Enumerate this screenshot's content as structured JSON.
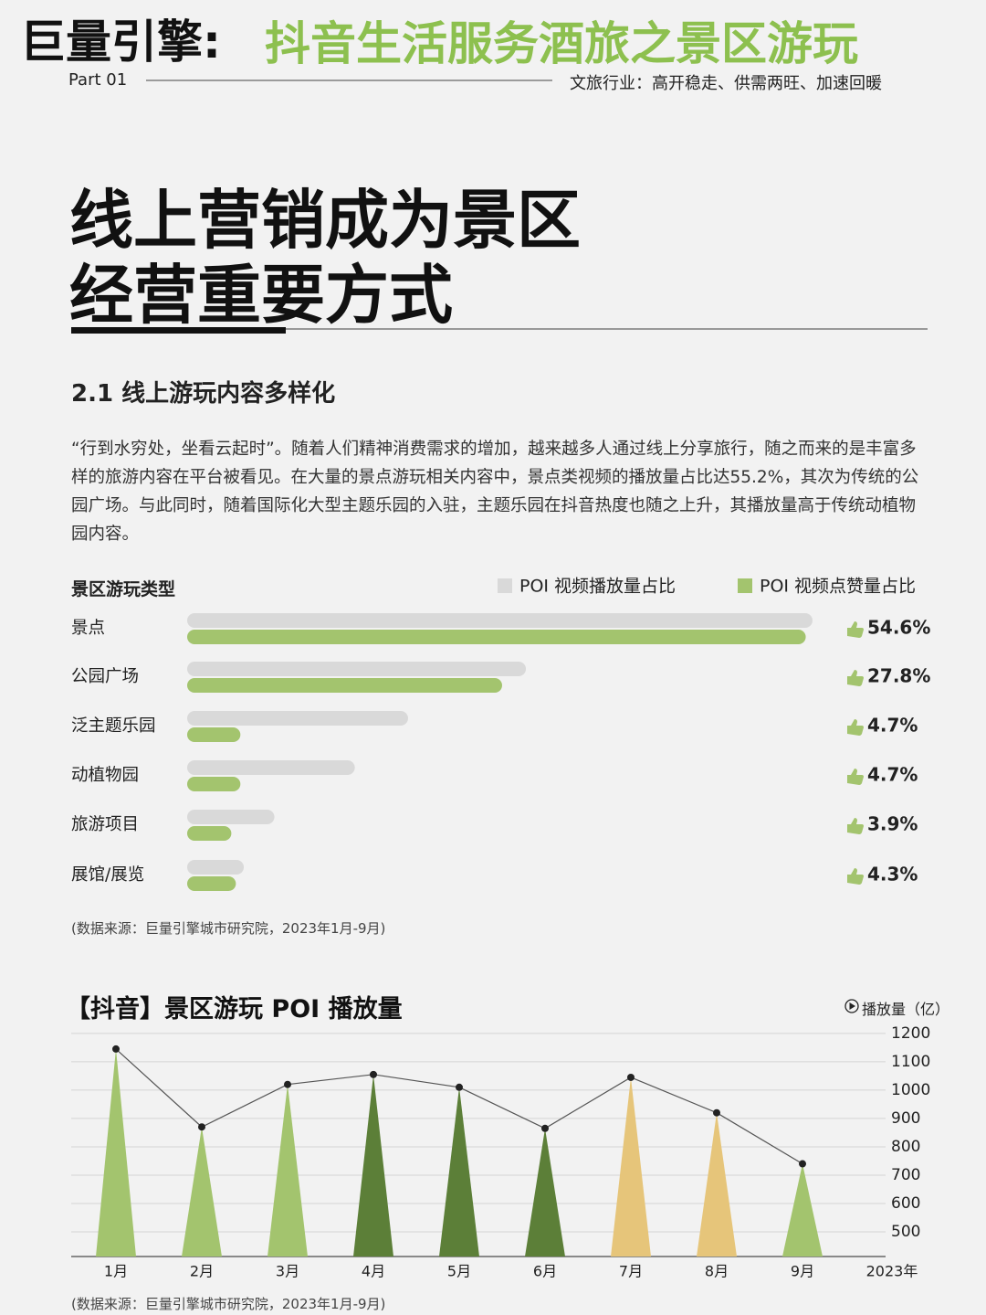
{
  "header": {
    "brand": "巨量引擎:",
    "subject": "抖音生活服务酒旅之景区游玩",
    "part": "Part 01",
    "tagline": "文旅行业：高开稳走、供需两旺、加速回暖"
  },
  "title": {
    "lines": [
      "线上营销成为景区",
      "经营重要方式"
    ]
  },
  "section": {
    "heading": "2.1 线上游玩内容多样化",
    "paragraph": "“行到水穷处，坐看云起时”。随着人们精神消费需求的增加，越来越多人通过线上分享旅行，随之而来的是丰富多样的旅游内容在平台被看见。在大量的景点游玩相关内容中，景点类视频的播放量占比达55.2%，其次为传统的公园广场。与此同时，随着国际化大型主题乐园的入驻，主题乐园在抖音热度也随之上升，其播放量高于传统动植物园内容。"
  },
  "chart_data": [
    {
      "type": "bar",
      "title": "景区游玩类型",
      "categories": [
        "景点",
        "公园广场",
        "泛主题乐园",
        "动植物园",
        "旅游项目",
        "展馆/展览"
      ],
      "series": [
        {
          "name": "POI 视频播放量占比",
          "color": "#d9d9d9",
          "values": [
            55.2,
            29.9,
            19.5,
            14.8,
            7.7,
            5.0
          ]
        },
        {
          "name": "POI 视频点赞量占比",
          "color": "#a3c46e",
          "values": [
            54.6,
            27.8,
            4.7,
            4.7,
            3.9,
            4.3
          ],
          "value_labels": [
            "54.6%",
            "27.8%",
            "4.7%",
            "4.7%",
            "3.9%",
            "4.3%"
          ]
        }
      ],
      "source": "(数据来源：巨量引擎城市研究院，2023年1月-9月)"
    },
    {
      "type": "triangle",
      "title": "【抖音】景区游玩 POI 播放量",
      "y_label": "播放量（亿）",
      "x_end_label": "2023年",
      "categories": [
        "1月",
        "2月",
        "3月",
        "4月",
        "5月",
        "6月",
        "7月",
        "8月",
        "9月"
      ],
      "values": [
        1145,
        870,
        1020,
        1055,
        1010,
        865,
        1045,
        920,
        740
      ],
      "colors": [
        "#a3c46e",
        "#a3c46e",
        "#a3c46e",
        "#5c7f38",
        "#5c7f38",
        "#5c7f38",
        "#e6c57a",
        "#e6c57a",
        "#a3c46e"
      ],
      "line_color": "#555555",
      "ylim": [
        413,
        1235
      ],
      "yticks": [
        500,
        600,
        700,
        800,
        900,
        1000,
        1100,
        1200
      ],
      "grid": true,
      "source": "(数据来源：巨量引擎城市研究院，2023年1月-9月)"
    }
  ]
}
